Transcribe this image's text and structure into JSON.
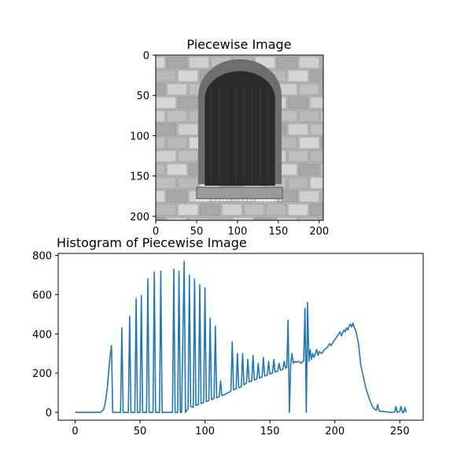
{
  "chart_data": [
    {
      "type": "image",
      "title": "Piecewise Image",
      "xlim": [
        0,
        205
      ],
      "ylim": [
        205,
        0
      ],
      "xticks": [
        "0",
        "50",
        "100",
        "150",
        "200"
      ],
      "yticks": [
        "0",
        "50",
        "100",
        "150",
        "200"
      ],
      "description_colors": {
        "wall": "#c9c9c9",
        "stone_dark": "#8c8c8c",
        "window": "#2a2a2a",
        "arch": "#6e6e6e"
      }
    },
    {
      "type": "line",
      "title": "Histogram of Piecewise Image",
      "xlim": [
        -13,
        268
      ],
      "ylim": [
        -40,
        810
      ],
      "xticks": [
        "0",
        "50",
        "100",
        "150",
        "200",
        "250"
      ],
      "yticks": [
        "0",
        "200",
        "400",
        "600",
        "800"
      ],
      "series": [
        {
          "color": "#1f77b4",
          "points": [
            [
              0,
              0
            ],
            [
              18,
              0
            ],
            [
              20,
              2
            ],
            [
              22,
              15
            ],
            [
              23,
              40
            ],
            [
              24,
              80
            ],
            [
              25,
              140
            ],
            [
              26,
              220
            ],
            [
              27,
              290
            ],
            [
              28,
              340
            ],
            [
              29,
              0
            ],
            [
              35,
              0
            ],
            [
              36,
              430
            ],
            [
              37,
              0
            ],
            [
              41,
              0
            ],
            [
              42,
              490
            ],
            [
              43,
              0
            ],
            [
              46,
              0
            ],
            [
              47,
              580
            ],
            [
              48,
              0
            ],
            [
              50,
              0
            ],
            [
              51,
              595
            ],
            [
              52,
              0
            ],
            [
              55,
              0
            ],
            [
              56,
              680
            ],
            [
              57,
              0
            ],
            [
              60,
              0
            ],
            [
              61,
              715
            ],
            [
              62,
              0
            ],
            [
              65,
              0
            ],
            [
              66,
              720
            ],
            [
              67,
              0
            ],
            [
              75,
              0
            ],
            [
              76,
              730
            ],
            [
              77,
              0
            ],
            [
              79,
              0
            ],
            [
              80,
              720
            ],
            [
              81,
              0
            ],
            [
              82,
              0
            ],
            [
              84,
              770
            ],
            [
              85,
              0
            ],
            [
              87,
              20
            ],
            [
              88,
              700
            ],
            [
              89,
              30
            ],
            [
              91,
              25
            ],
            [
              92,
              680
            ],
            [
              93,
              35
            ],
            [
              95,
              40
            ],
            [
              96,
              650
            ],
            [
              97,
              45
            ],
            [
              99,
              50
            ],
            [
              100,
              635
            ],
            [
              101,
              55
            ],
            [
              103,
              60
            ],
            [
              104,
              480
            ],
            [
              105,
              65
            ],
            [
              107,
              70
            ],
            [
              108,
              440
            ],
            [
              109,
              75
            ],
            [
              111,
              80
            ],
            [
              112,
              160
            ],
            [
              113,
              85
            ],
            [
              115,
              90
            ],
            [
              116,
              95
            ],
            [
              118,
              100
            ],
            [
              119,
              105
            ],
            [
              120,
              110
            ],
            [
              121,
              360
            ],
            [
              122,
              115
            ],
            [
              124,
              120
            ],
            [
              125,
              300
            ],
            [
              126,
              125
            ],
            [
              128,
              130
            ],
            [
              129,
              300
            ],
            [
              130,
              140
            ],
            [
              132,
              150
            ],
            [
              133,
              270
            ],
            [
              134,
              155
            ],
            [
              136,
              160
            ],
            [
              137,
              290
            ],
            [
              138,
              165
            ],
            [
              140,
              170
            ],
            [
              141,
              250
            ],
            [
              142,
              175
            ],
            [
              144,
              180
            ],
            [
              145,
              280
            ],
            [
              146,
              185
            ],
            [
              148,
              190
            ],
            [
              149,
              260
            ],
            [
              150,
              195
            ],
            [
              152,
              200
            ],
            [
              153,
              270
            ],
            [
              154,
              205
            ],
            [
              156,
              210
            ],
            [
              157,
              250
            ],
            [
              158,
              215
            ],
            [
              160,
              220
            ],
            [
              161,
              260
            ],
            [
              162,
              225
            ],
            [
              163,
              230
            ],
            [
              164,
              470
            ],
            [
              165,
              0
            ],
            [
              166,
              240
            ],
            [
              167,
              300
            ],
            [
              168,
              250
            ],
            [
              169,
              260
            ],
            [
              170,
              255
            ],
            [
              172,
              260
            ],
            [
              174,
              250
            ],
            [
              176,
              265
            ],
            [
              177,
              530
            ],
            [
              178,
              0
            ],
            [
              179,
              560
            ],
            [
              180,
              260
            ],
            [
              181,
              320
            ],
            [
              182,
              270
            ],
            [
              183,
              300
            ],
            [
              184,
              280
            ],
            [
              186,
              320
            ],
            [
              187,
              290
            ],
            [
              188,
              310
            ],
            [
              190,
              300
            ],
            [
              192,
              320
            ],
            [
              194,
              330
            ],
            [
              196,
              350
            ],
            [
              197,
              340
            ],
            [
              199,
              360
            ],
            [
              200,
              370
            ],
            [
              201,
              380
            ],
            [
              203,
              400
            ],
            [
              204,
              410
            ],
            [
              205,
              390
            ],
            [
              207,
              420
            ],
            [
              208,
              410
            ],
            [
              209,
              430
            ],
            [
              210,
              420
            ],
            [
              211,
              440
            ],
            [
              212,
              450
            ],
            [
              213,
              435
            ],
            [
              214,
              455
            ],
            [
              215,
              430
            ],
            [
              216,
              420
            ],
            [
              217,
              390
            ],
            [
              218,
              360
            ],
            [
              219,
              300
            ],
            [
              220,
              240
            ],
            [
              221,
              210
            ],
            [
              222,
              180
            ],
            [
              223,
              150
            ],
            [
              224,
              120
            ],
            [
              225,
              100
            ],
            [
              226,
              80
            ],
            [
              227,
              60
            ],
            [
              228,
              45
            ],
            [
              229,
              30
            ],
            [
              230,
              20
            ],
            [
              231,
              15
            ],
            [
              232,
              10
            ],
            [
              233,
              40
            ],
            [
              234,
              8
            ],
            [
              235,
              5
            ],
            [
              237,
              5
            ],
            [
              239,
              3
            ],
            [
              240,
              2
            ],
            [
              242,
              1
            ],
            [
              244,
              0
            ],
            [
              246,
              2
            ],
            [
              247,
              30
            ],
            [
              248,
              0
            ],
            [
              250,
              5
            ],
            [
              251,
              30
            ],
            [
              252,
              0
            ],
            [
              253,
              0
            ],
            [
              254,
              25
            ],
            [
              255,
              0
            ]
          ]
        }
      ]
    }
  ]
}
